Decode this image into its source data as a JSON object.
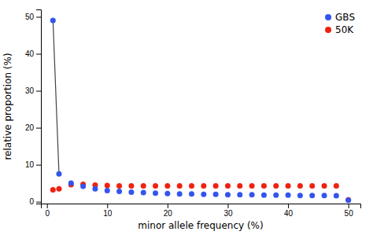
{
  "chart_data": {
    "type": "scatter",
    "xlabel": "minor allele frequency (%)",
    "ylabel": "relative proportion (%)",
    "series": [
      {
        "name": "GBS",
        "color": "#3355EE",
        "x": [
          1,
          2,
          4,
          6,
          8,
          10,
          12,
          14,
          16,
          18,
          20,
          22,
          24,
          26,
          28,
          30,
          32,
          34,
          36,
          38,
          40,
          42,
          44,
          46,
          48,
          50
        ],
        "values": [
          49.0,
          7.5,
          5.0,
          4.2,
          3.5,
          3.0,
          2.8,
          2.6,
          2.5,
          2.3,
          2.2,
          2.1,
          2.1,
          2.0,
          2.0,
          1.9,
          1.9,
          1.9,
          1.8,
          1.8,
          1.8,
          1.7,
          1.7,
          1.7,
          1.6,
          0.4
        ]
      },
      {
        "name": "50K",
        "color": "#EE2211",
        "x": [
          1,
          2,
          4,
          6,
          8,
          10,
          12,
          14,
          16,
          18,
          20,
          22,
          24,
          26,
          28,
          30,
          32,
          34,
          36,
          38,
          40,
          42,
          44,
          46,
          48,
          50
        ],
        "values": [
          3.2,
          3.5,
          4.6,
          4.7,
          4.5,
          4.4,
          4.3,
          4.3,
          4.3,
          4.3,
          4.3,
          4.3,
          4.3,
          4.3,
          4.3,
          4.3,
          4.3,
          4.3,
          4.3,
          4.3,
          4.3,
          4.3,
          4.3,
          4.3,
          4.3,
          0.5
        ]
      },
      {
        "type": "line",
        "color": "#444444",
        "x": [
          1,
          2
        ],
        "values": [
          49.0,
          7.5
        ]
      }
    ],
    "xlim": [
      -1,
      52
    ],
    "ylim": [
      -0.5,
      52
    ],
    "xticks": [
      0,
      10,
      20,
      30,
      40,
      50
    ],
    "yticks": [
      0,
      10,
      20,
      30,
      40,
      50
    ],
    "grid": false,
    "legend": "upper right"
  }
}
